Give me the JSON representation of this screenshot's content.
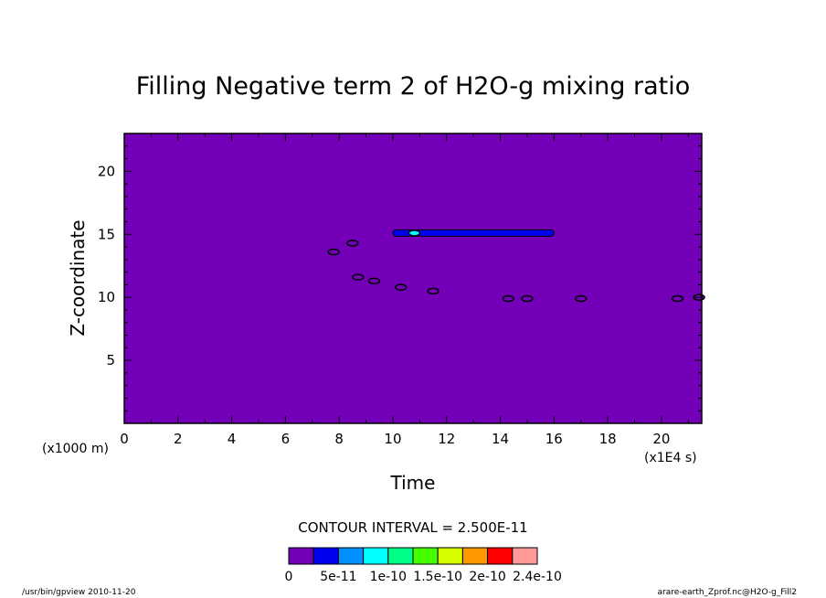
{
  "chart_data": {
    "type": "heatmap",
    "title": "Filling Negative term 2 of H2O-g mixing ratio",
    "xlabel": "Time",
    "ylabel": "Z-coordinate",
    "x_unit": "(x1E4 s)",
    "y_unit": "(x1000 m)",
    "xlim": [
      0,
      21.5
    ],
    "ylim": [
      0,
      23
    ],
    "xticks": [
      0,
      2,
      4,
      6,
      8,
      10,
      12,
      14,
      16,
      18,
      20
    ],
    "yticks": [
      5,
      10,
      15,
      20
    ],
    "background_value": 0,
    "contour_interval_text": "CONTOUR INTERVAL = 2.500E-11",
    "colorbar": {
      "colors": [
        "#7300b8",
        "#0000f0",
        "#0090ff",
        "#00ffff",
        "#00ff88",
        "#44ff00",
        "#d8ff00",
        "#ff9900",
        "#ff0000",
        "#ff9999"
      ],
      "labels": [
        "0",
        "5e-11",
        "1e-10",
        "1.5e-10",
        "2e-10",
        "2.4e-10"
      ]
    },
    "features": [
      {
        "type": "band",
        "x0": 10.0,
        "x1": 16.0,
        "z": 15.1,
        "level": 1
      },
      {
        "type": "blob",
        "x": 10.8,
        "z": 15.1,
        "level": 3
      },
      {
        "type": "blob",
        "x": 7.8,
        "z": 13.6,
        "level": 0
      },
      {
        "type": "blob",
        "x": 8.5,
        "z": 14.3,
        "level": 0
      },
      {
        "type": "blob",
        "x": 8.7,
        "z": 11.6,
        "level": 0
      },
      {
        "type": "blob",
        "x": 9.3,
        "z": 11.3,
        "level": 0
      },
      {
        "type": "blob",
        "x": 10.3,
        "z": 10.8,
        "level": 0
      },
      {
        "type": "blob",
        "x": 11.5,
        "z": 10.5,
        "level": 0
      },
      {
        "type": "blob",
        "x": 14.3,
        "z": 9.9,
        "level": 0
      },
      {
        "type": "blob",
        "x": 15.0,
        "z": 9.9,
        "level": 0
      },
      {
        "type": "blob",
        "x": 17.0,
        "z": 9.9,
        "level": 0
      },
      {
        "type": "blob",
        "x": 20.6,
        "z": 9.9,
        "level": 0
      },
      {
        "type": "blob",
        "x": 21.4,
        "z": 10.0,
        "level": 0
      }
    ]
  },
  "footer": {
    "left": "/usr/bin/gpview  2010-11-20",
    "right": "arare-earth_Zprof.nc@H2O-g_Fill2"
  }
}
